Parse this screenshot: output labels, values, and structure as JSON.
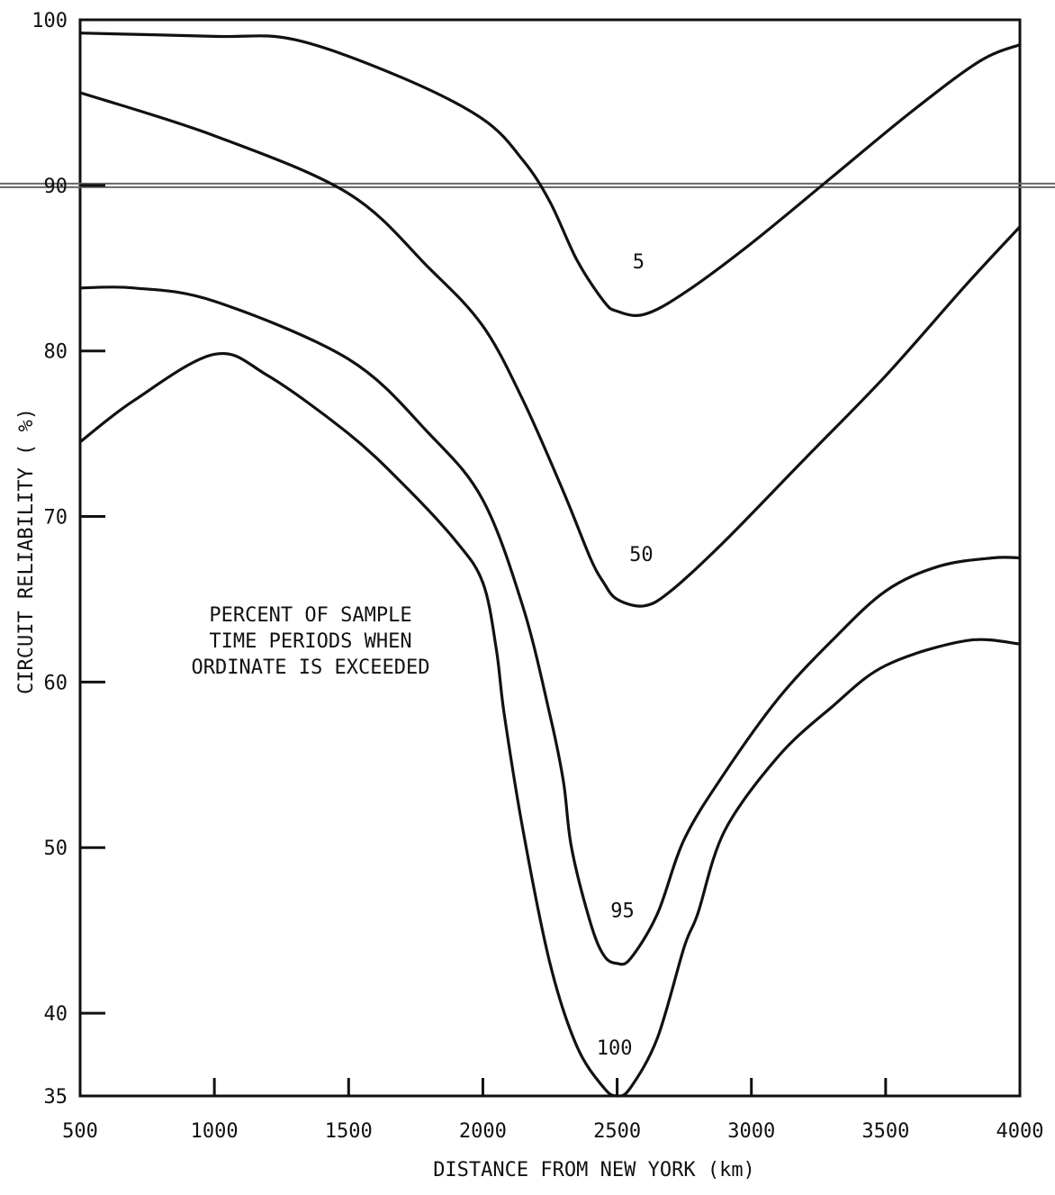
{
  "chart_data": {
    "type": "line",
    "title": "",
    "xlabel": "DISTANCE FROM NEW YORK  (km)",
    "ylabel": "CIRCUIT RELIABILITY ( %)",
    "xlim": [
      500,
      4000
    ],
    "ylim": [
      35,
      100
    ],
    "x_ticks": [
      "500",
      "1000",
      "1500",
      "2000",
      "2500",
      "3000",
      "3500",
      "4000"
    ],
    "y_ticks": [
      "35",
      "40",
      "50",
      "60",
      "70",
      "80",
      "90",
      "100"
    ],
    "grid": false,
    "reference_line_y": 90,
    "annotation": [
      "PERCENT OF SAMPLE",
      "TIME PERIODS WHEN",
      "ORDINATE IS EXCEEDED"
    ],
    "series": [
      {
        "name": "5",
        "x": [
          500,
          1000,
          1300,
          1700,
          2000,
          2150,
          2250,
          2350,
          2450,
          2500,
          2600,
          2750,
          3000,
          3300,
          3600,
          3850,
          4000
        ],
        "y": [
          99.2,
          99,
          98.8,
          96.5,
          94,
          91.5,
          89,
          85.5,
          83,
          82.4,
          82.2,
          83.5,
          86.5,
          90.5,
          94.5,
          97.5,
          98.5
        ]
      },
      {
        "name": "50",
        "x": [
          500,
          1000,
          1500,
          1800,
          2000,
          2150,
          2300,
          2400,
          2450,
          2500,
          2600,
          2700,
          2900,
          3200,
          3500,
          3800,
          4000
        ],
        "y": [
          95.6,
          93,
          89.5,
          85,
          81.5,
          77,
          71.5,
          67.5,
          66,
          65,
          64.6,
          65.5,
          68.5,
          73.5,
          78.5,
          84,
          87.5
        ]
      },
      {
        "name": "95",
        "x": [
          500,
          700,
          1000,
          1500,
          1800,
          2000,
          2150,
          2250,
          2300,
          2330,
          2400,
          2450,
          2500,
          2550,
          2650,
          2750,
          2900,
          3100,
          3300,
          3500,
          3700,
          3900,
          4000
        ],
        "y": [
          83.8,
          83.8,
          83,
          79.5,
          75,
          71,
          64.5,
          58,
          54,
          50,
          45.5,
          43.5,
          43,
          43.3,
          46,
          50.5,
          54.5,
          59,
          62.5,
          65.5,
          67,
          67.5,
          67.5
        ]
      },
      {
        "name": "100",
        "x": [
          500,
          700,
          1000,
          1200,
          1500,
          1700,
          1900,
          2000,
          2050,
          2080,
          2150,
          2250,
          2350,
          2450,
          2500,
          2550,
          2650,
          2750,
          2800,
          2900,
          3100,
          3300,
          3500,
          3800,
          4000
        ],
        "y": [
          74.5,
          77,
          79.8,
          78.5,
          75,
          72,
          68.5,
          66,
          62,
          58,
          51,
          43,
          38,
          35.5,
          35,
          35.5,
          38.5,
          44,
          46,
          51,
          55.5,
          58.5,
          61,
          62.5,
          62.3
        ]
      }
    ],
    "curve_labels": [
      {
        "text": "5",
        "x": 2580,
        "y": 85
      },
      {
        "text": "50",
        "x": 2590,
        "y": 67.3
      },
      {
        "text": "95",
        "x": 2520,
        "y": 45.8
      },
      {
        "text": "100",
        "x": 2490,
        "y": 37.5
      }
    ]
  }
}
